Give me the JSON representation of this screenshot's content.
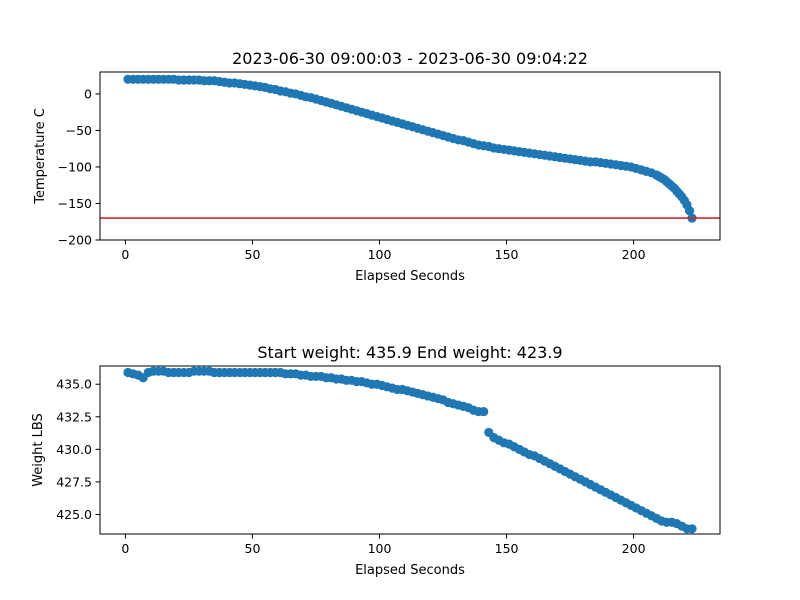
{
  "chart_data": [
    {
      "type": "scatter",
      "title": "2023-06-30 09:00:03 - 2023-06-30 09:04:22",
      "xlabel": "Elapsed Seconds",
      "ylabel": "Temperature C",
      "xlim": [
        -10,
        234
      ],
      "ylim": [
        -200,
        30
      ],
      "xticks": [
        0,
        50,
        100,
        150,
        200
      ],
      "xtick_labels": [
        "0",
        "50",
        "100",
        "150",
        "200"
      ],
      "yticks": [
        0,
        -50,
        -100,
        -150,
        -200
      ],
      "ytick_labels": [
        "0",
        "−50",
        "−100",
        "−150",
        "−200"
      ],
      "grid": false,
      "marker_color": "#1f77b4",
      "reference_line": {
        "y": -170,
        "color": "#d62728"
      },
      "series": [
        {
          "x": [
            1,
            3,
            5,
            7,
            9,
            11,
            13,
            15,
            17,
            19,
            21,
            23,
            25,
            27,
            29,
            31,
            33,
            35,
            37,
            39,
            41,
            43,
            45,
            47,
            49,
            51,
            53,
            55,
            57,
            59,
            61,
            63,
            65,
            67,
            69,
            71,
            73,
            75,
            77,
            79,
            81,
            83,
            85,
            87,
            89,
            91,
            93,
            95,
            97,
            99,
            101,
            103,
            105,
            107,
            109,
            111,
            113,
            115,
            117,
            119,
            121,
            123,
            125,
            127,
            129,
            131,
            133,
            135,
            137,
            139,
            141,
            143,
            145,
            147,
            149,
            151,
            153,
            155,
            157,
            159,
            161,
            163,
            165,
            167,
            169,
            171,
            173,
            175,
            177,
            179,
            181,
            183,
            185,
            187,
            189,
            191,
            193,
            195,
            197,
            199,
            201,
            203,
            205,
            207,
            209,
            210,
            211,
            212,
            213,
            214,
            215,
            216,
            217,
            218,
            219,
            220,
            221,
            222,
            223
          ],
          "y": [
            20,
            20,
            20,
            20,
            20,
            20,
            20,
            20,
            20,
            20,
            19,
            19,
            19,
            19,
            19,
            18,
            18,
            18,
            17,
            16,
            15,
            15,
            14,
            13,
            12,
            11,
            10,
            9,
            7,
            6,
            4,
            3,
            1,
            0,
            -2,
            -4,
            -5,
            -7,
            -9,
            -11,
            -13,
            -15,
            -17,
            -19,
            -21,
            -23,
            -25,
            -27,
            -29,
            -31,
            -33,
            -35,
            -37,
            -39,
            -41,
            -43,
            -45,
            -47,
            -49,
            -51,
            -53,
            -55,
            -57,
            -59,
            -61,
            -63,
            -64,
            -66,
            -68,
            -70,
            -71,
            -72,
            -74,
            -75,
            -76,
            -77,
            -78,
            -79,
            -80,
            -81,
            -82,
            -83,
            -84,
            -85,
            -86,
            -87,
            -88,
            -89,
            -90,
            -91,
            -92,
            -93,
            -93,
            -94,
            -95,
            -96,
            -97,
            -98,
            -99,
            -100,
            -102,
            -104,
            -106,
            -108,
            -111,
            -113,
            -115,
            -117,
            -120,
            -123,
            -126,
            -129,
            -133,
            -137,
            -141,
            -146,
            -152,
            -160,
            -170
          ]
        }
      ]
    },
    {
      "type": "scatter",
      "title": "Start weight: 435.9 End weight: 423.9",
      "xlabel": "Elapsed Seconds",
      "ylabel": "Weight LBS",
      "xlim": [
        -10,
        234
      ],
      "ylim": [
        423.5,
        436.4
      ],
      "xticks": [
        0,
        50,
        100,
        150,
        200
      ],
      "xtick_labels": [
        "0",
        "50",
        "100",
        "150",
        "200"
      ],
      "yticks": [
        435.0,
        432.5,
        430.0,
        427.5,
        425.0
      ],
      "ytick_labels": [
        "435.0",
        "432.5",
        "430.0",
        "427.5",
        "425.0"
      ],
      "grid": false,
      "marker_color": "#1f77b4",
      "series": [
        {
          "x": [
            1,
            3,
            5,
            7,
            9,
            11,
            13,
            15,
            17,
            19,
            21,
            23,
            25,
            27,
            29,
            31,
            33,
            35,
            37,
            39,
            41,
            43,
            45,
            47,
            49,
            51,
            53,
            55,
            57,
            59,
            61,
            63,
            65,
            67,
            69,
            71,
            73,
            75,
            77,
            79,
            81,
            83,
            85,
            87,
            89,
            91,
            93,
            95,
            97,
            99,
            101,
            103,
            105,
            107,
            109,
            111,
            113,
            115,
            117,
            119,
            121,
            123,
            125,
            127,
            129,
            131,
            133,
            135,
            137,
            139,
            141,
            143,
            145,
            147,
            149,
            151,
            153,
            155,
            157,
            159,
            161,
            163,
            165,
            167,
            169,
            171,
            173,
            175,
            177,
            179,
            181,
            183,
            185,
            187,
            189,
            191,
            193,
            195,
            197,
            199,
            201,
            203,
            205,
            207,
            209,
            211,
            213,
            215,
            217,
            219,
            221,
            223
          ],
          "y": [
            435.9,
            435.8,
            435.7,
            435.5,
            435.9,
            436.0,
            436.0,
            436.0,
            435.9,
            435.9,
            435.9,
            435.9,
            435.9,
            436.0,
            436.0,
            436.0,
            436.0,
            435.9,
            435.9,
            435.9,
            435.9,
            435.9,
            435.9,
            435.9,
            435.9,
            435.9,
            435.9,
            435.9,
            435.9,
            435.9,
            435.9,
            435.8,
            435.8,
            435.8,
            435.7,
            435.7,
            435.6,
            435.6,
            435.6,
            435.5,
            435.5,
            435.4,
            435.4,
            435.3,
            435.3,
            435.2,
            435.2,
            435.1,
            435.0,
            435.0,
            434.9,
            434.8,
            434.7,
            434.6,
            434.6,
            434.5,
            434.4,
            434.3,
            434.2,
            434.1,
            434.0,
            433.9,
            433.8,
            433.6,
            433.5,
            433.4,
            433.3,
            433.2,
            433.0,
            432.9,
            432.9,
            431.3,
            430.9,
            430.7,
            430.5,
            430.4,
            430.2,
            430.0,
            429.8,
            429.6,
            429.5,
            429.3,
            429.1,
            428.9,
            428.7,
            428.5,
            428.3,
            428.1,
            427.9,
            427.7,
            427.5,
            427.3,
            427.1,
            426.9,
            426.7,
            426.5,
            426.3,
            426.1,
            425.9,
            425.7,
            425.5,
            425.3,
            425.1,
            424.9,
            424.7,
            424.5,
            424.4,
            424.4,
            424.3,
            424.1,
            423.9,
            423.9
          ]
        }
      ]
    }
  ]
}
